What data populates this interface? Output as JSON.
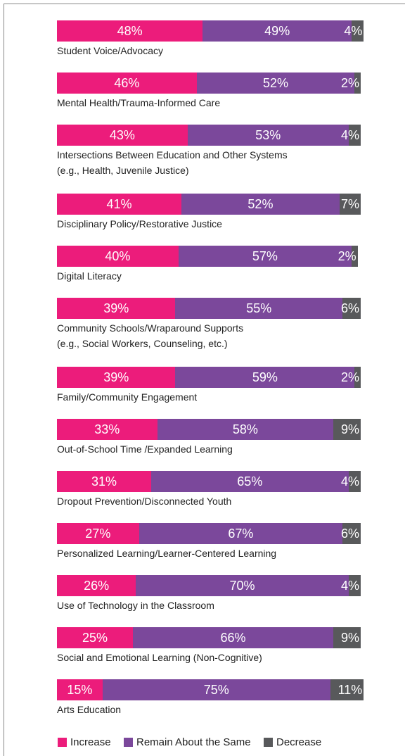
{
  "chart_data": {
    "type": "stacked-bar",
    "categories": [
      "Student Voice/Advocacy",
      "Mental Health/Trauma-Informed Care",
      "Intersections Between Education and Other Systems\n(e.g., Health, Juvenile Justice)",
      "Disciplinary Policy/Restorative Justice",
      "Digital Literacy",
      "Community Schools/Wraparound Supports\n(e.g., Social Workers, Counseling, etc.)",
      "Family/Community Engagement",
      "Out-of-School Time /Expanded Learning",
      "Dropout Prevention/Disconnected Youth",
      "Personalized Learning/Learner-Centered Learning",
      "Use of Technology in the Classroom",
      "Social and Emotional Learning (Non-Cognitive)",
      "Arts Education"
    ],
    "series": [
      {
        "name": "Increase",
        "color": "#ec1c7b",
        "values": [
          48,
          46,
          43,
          41,
          40,
          39,
          39,
          33,
          31,
          27,
          26,
          25,
          15
        ],
        "value_labels": [
          "48%",
          "46%",
          "43%",
          "41%",
          "40%",
          "39%",
          "39%",
          "33%",
          "31%",
          "27%",
          "26%",
          "25%",
          "15%"
        ]
      },
      {
        "name": "Remain About the Same",
        "color": "#7b489b",
        "values": [
          49,
          52,
          53,
          52,
          57,
          55,
          59,
          58,
          65,
          67,
          70,
          66,
          75
        ],
        "value_labels": [
          "49%",
          "52%",
          "53%",
          "52%",
          "57%",
          "55%",
          "59%",
          "58%",
          "65%",
          "67%",
          "70%",
          "66%",
          "75%"
        ]
      },
      {
        "name": "Decrease",
        "color": "#58595b",
        "values": [
          4,
          2,
          4,
          7,
          2,
          6,
          2,
          9,
          4,
          6,
          4,
          9,
          11
        ],
        "value_labels": [
          "4%",
          "2%",
          "4%",
          "7%",
          "2%",
          "6%",
          "2%",
          "9%",
          "4%",
          "6%",
          "4%",
          "9%",
          "11%"
        ]
      }
    ],
    "xlim": [
      0,
      100
    ]
  }
}
